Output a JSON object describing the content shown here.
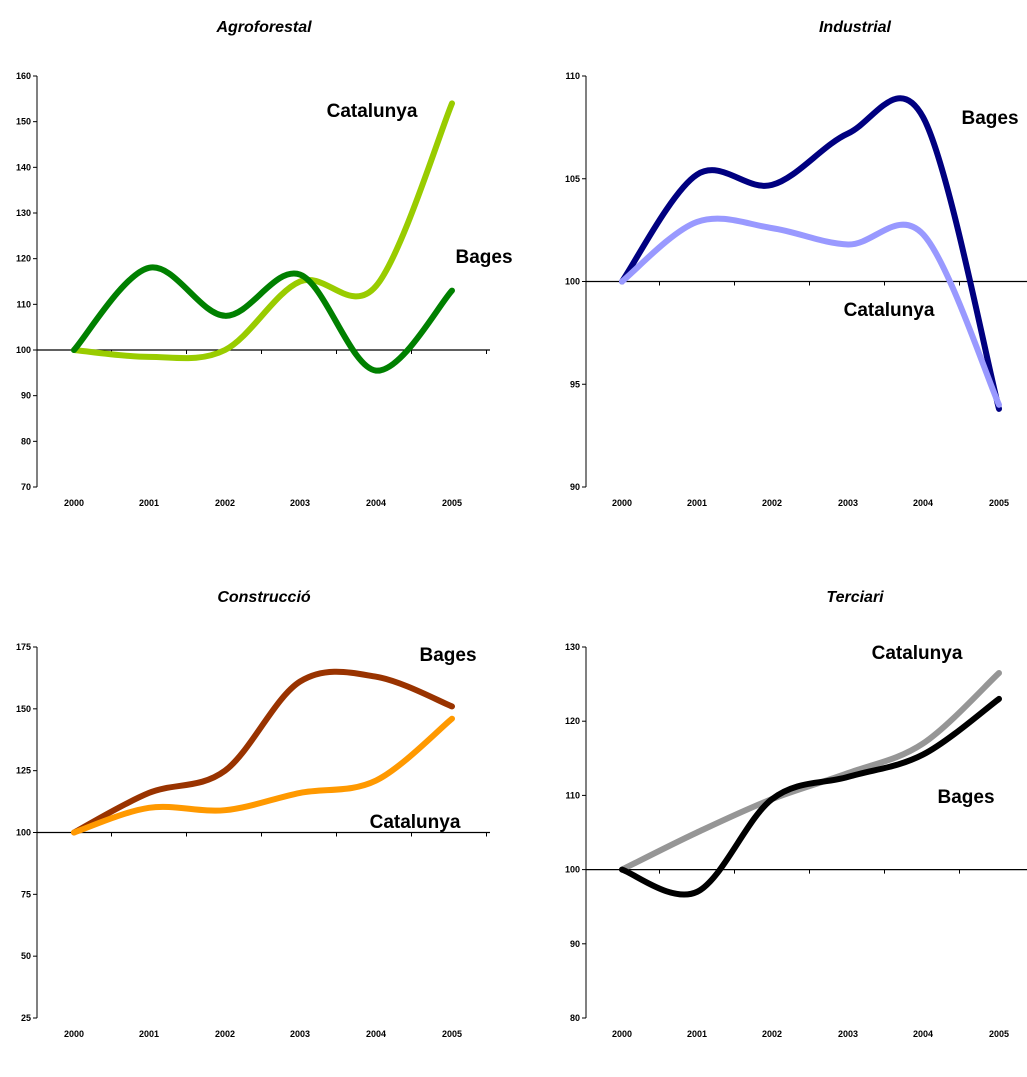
{
  "chart_data": [
    {
      "type": "line",
      "title": "Agroforestal",
      "categories": [
        "2000",
        "2001",
        "2002",
        "2003",
        "2004",
        "2005"
      ],
      "ylim": [
        70,
        160
      ],
      "yticks": [
        70,
        80,
        90,
        100,
        110,
        120,
        130,
        140,
        150,
        160
      ],
      "baseline": 100,
      "series": [
        {
          "name": "Catalunya",
          "color": "#99cc00",
          "values": [
            100,
            98.5,
            100,
            115,
            114,
            154
          ]
        },
        {
          "name": "Bages",
          "color": "#008000",
          "values": [
            100,
            118,
            107.5,
            116.5,
            95.5,
            113
          ]
        }
      ]
    },
    {
      "type": "line",
      "title": "Industrial",
      "categories": [
        "2000",
        "2001",
        "2002",
        "2003",
        "2004",
        "2005"
      ],
      "ylim": [
        90,
        110
      ],
      "yticks": [
        90,
        95,
        100,
        105,
        110
      ],
      "baseline": 100,
      "series": [
        {
          "name": "Bages",
          "color": "#000080",
          "values": [
            100,
            105.2,
            104.7,
            107.2,
            108,
            93.8
          ]
        },
        {
          "name": "Catalunya",
          "color": "#9999ff",
          "values": [
            100,
            102.9,
            102.6,
            101.8,
            102.3,
            94
          ]
        }
      ]
    },
    {
      "type": "line",
      "title": "Construcció",
      "categories": [
        "2000",
        "2001",
        "2002",
        "2003",
        "2004",
        "2005"
      ],
      "ylim": [
        25,
        175
      ],
      "yticks": [
        25,
        50,
        75,
        100,
        125,
        150,
        175
      ],
      "baseline": 100,
      "series": [
        {
          "name": "Bages",
          "color": "#993300",
          "values": [
            100,
            116,
            125,
            161,
            163,
            151
          ]
        },
        {
          "name": "Catalunya",
          "color": "#ff9900",
          "values": [
            100,
            110,
            109,
            116,
            121,
            146
          ]
        }
      ]
    },
    {
      "type": "line",
      "title": "Terciari",
      "categories": [
        "2000",
        "2001",
        "2002",
        "2003",
        "2004",
        "2005"
      ],
      "ylim": [
        80,
        130
      ],
      "yticks": [
        80,
        90,
        100,
        110,
        120,
        130
      ],
      "baseline": 100,
      "series": [
        {
          "name": "Catalunya",
          "color": "#969696",
          "values": [
            100,
            105,
            109.5,
            113,
            117,
            126.5
          ]
        },
        {
          "name": "Bages",
          "color": "#000000",
          "values": [
            100,
            97,
            109.5,
            112.5,
            115.5,
            123
          ]
        }
      ]
    }
  ]
}
